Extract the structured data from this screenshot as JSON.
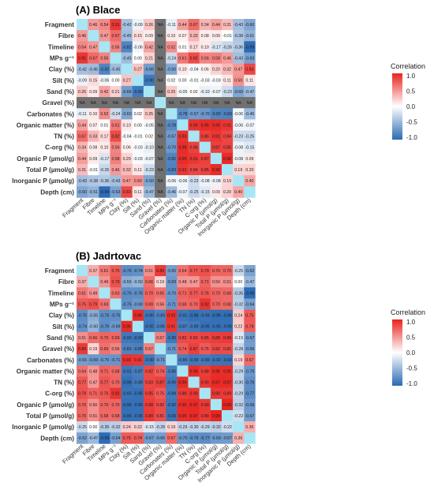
{
  "chart_data": [
    {
      "type": "heatmap",
      "title": "(A) Blace",
      "rows": [
        "Fragment",
        "Fibre",
        "Timeline",
        "MPs g⁻¹",
        "Clay (%)",
        "Silt (%)",
        "Sand (%)",
        "Gravel (%)",
        "Carbonates (%)",
        "Organic matter (%)",
        "TN (%)",
        "C-org (%)",
        "Organic P (µmol/g)",
        "Total P (µmol/g)",
        "Inorganic P (µmol/g)",
        "Depth (cm)"
      ],
      "columns": [
        "Fragment",
        "Fibre",
        "Timeline",
        "MPs g⁻¹",
        "Clay (%)",
        "Silt (%)",
        "Sand (%)",
        "Gravel (%)",
        "Carbonates (%)",
        "Organic matter (%)",
        "TN (%)",
        "C-org (%)",
        "Organic P (µmol/g)",
        "Total P (µmol/g)",
        "Inorganic P (µmol/g)",
        "Depth (cm)"
      ],
      "na_label": "NA",
      "values": [
        [
          null,
          0.46,
          0.54,
          0.91,
          -0.42,
          -0.09,
          0.26,
          "NA",
          -0.11,
          0.44,
          0.67,
          0.34,
          0.44,
          0.31,
          -0.43,
          -0.6
        ],
        [
          0.46,
          null,
          0.47,
          0.67,
          -0.45,
          0.15,
          0.09,
          "NA",
          0.1,
          0.07,
          0.33,
          0.08,
          0.09,
          -0.01,
          -0.38,
          -0.51
        ],
        [
          0.54,
          0.47,
          null,
          0.56,
          -0.82,
          -0.06,
          0.42,
          "NA",
          0.52,
          0.01,
          0.17,
          0.1,
          -0.17,
          -0.26,
          -0.36,
          -0.99
        ],
        [
          0.91,
          0.67,
          0.56,
          null,
          -0.45,
          0.0,
          0.21,
          "NA",
          -0.24,
          0.61,
          0.82,
          0.56,
          0.58,
          0.46,
          -0.43,
          -0.63
        ],
        [
          -0.42,
          -0.45,
          -0.82,
          -0.45,
          null,
          0.27,
          -0.66,
          "NA",
          -0.6,
          0.1,
          -0.04,
          0.06,
          0.2,
          0.32,
          0.47,
          0.83
        ],
        [
          -0.09,
          0.15,
          -0.06,
          0.0,
          0.27,
          null,
          -0.9,
          "NA",
          0.02,
          0.0,
          -0.01,
          -0.03,
          -0.03,
          0.11,
          0.5,
          0.11
        ],
        [
          0.26,
          0.09,
          0.42,
          0.21,
          -0.66,
          -0.9,
          null,
          "NA",
          0.25,
          -0.05,
          0.02,
          -0.1,
          -0.07,
          -0.23,
          -0.6,
          -0.47
        ],
        [
          "NA",
          "NA",
          "NA",
          "NA",
          "NA",
          "NA",
          "NA",
          null,
          "NA",
          "NA",
          "NA",
          "NA",
          "NA",
          "NA",
          "NA",
          "NA"
        ],
        [
          -0.11,
          0.1,
          0.52,
          -0.24,
          -0.6,
          0.02,
          0.25,
          "NA",
          null,
          -0.78,
          -0.67,
          -0.7,
          -0.82,
          -0.83,
          -0.06,
          -0.46
        ],
        [
          0.44,
          0.07,
          0.01,
          0.61,
          0.1,
          0.0,
          -0.05,
          "NA",
          -0.78,
          null,
          0.93,
          0.96,
          0.95,
          0.91,
          -0.06,
          -0.07
        ],
        [
          0.67,
          0.33,
          0.17,
          0.82,
          -0.04,
          -0.01,
          0.02,
          "NA",
          -0.67,
          0.93,
          null,
          0.86,
          0.91,
          0.84,
          -0.23,
          -0.25
        ],
        [
          0.34,
          0.08,
          0.1,
          0.56,
          0.06,
          -0.03,
          -0.1,
          "NA",
          -0.7,
          0.96,
          0.86,
          null,
          0.87,
          0.85,
          -0.08,
          -0.15
        ],
        [
          0.44,
          0.09,
          -0.17,
          0.58,
          0.2,
          -0.03,
          -0.07,
          "NA",
          -0.82,
          0.95,
          0.91,
          0.87,
          null,
          0.96,
          -0.08,
          0.09
        ],
        [
          0.31,
          -0.01,
          -0.26,
          0.46,
          0.32,
          0.11,
          -0.23,
          "NA",
          -0.83,
          0.91,
          0.84,
          0.85,
          0.96,
          null,
          0.19,
          0.2
        ],
        [
          -0.43,
          -0.38,
          -0.36,
          -0.43,
          0.47,
          0.5,
          -0.6,
          "NA",
          -0.06,
          -0.06,
          -0.23,
          -0.08,
          -0.08,
          0.19,
          null,
          0.4
        ],
        [
          -0.6,
          -0.51,
          -0.99,
          -0.63,
          0.83,
          0.11,
          -0.47,
          "NA",
          -0.46,
          -0.07,
          -0.25,
          -0.15,
          0.09,
          0.2,
          0.4,
          null
        ]
      ]
    },
    {
      "type": "heatmap",
      "title": "(B) Jadrtovac",
      "rows": [
        "Fragment",
        "Fibre",
        "Timeline",
        "MPs g⁻¹",
        "Clay (%)",
        "Silt (%)",
        "Sand (%)",
        "Gravel (%)",
        "Carbonates (%)",
        "Organic matter (%)",
        "TN (%)",
        "C-org (%)",
        "Organic P (µmol/g)",
        "Total P (µmol/g)",
        "Inorganic P (µmol/g)",
        "Depth (cm)"
      ],
      "columns": [
        "Fragment",
        "Fibre",
        "Timeline",
        "MPs g⁻¹",
        "Clay (%)",
        "Silt (%)",
        "Sand (%)",
        "Gravel (%)",
        "Carbonates (%)",
        "Organic matter (%)",
        "TN (%)",
        "C-org (%)",
        "Organic P (µmol/g)",
        "Total P (µmol/g)",
        "Inorganic P (µmol/g)",
        "Depth (cm)"
      ],
      "values": [
        [
          null,
          0.37,
          0.61,
          0.75,
          -0.76,
          -0.74,
          0.51,
          0.89,
          -0.65,
          0.64,
          0.77,
          0.79,
          0.7,
          0.7,
          -0.25,
          -0.62
        ],
        [
          0.37,
          null,
          0.49,
          0.79,
          -0.55,
          -0.5,
          0.66,
          0.19,
          -0.69,
          0.48,
          0.47,
          0.71,
          0.5,
          0.51,
          0.0,
          -0.47
        ],
        [
          0.61,
          0.49,
          null,
          0.63,
          -0.76,
          -0.76,
          0.7,
          0.65,
          -0.7,
          0.71,
          0.77,
          0.76,
          0.7,
          0.68,
          -0.35,
          -0.99
        ],
        [
          0.75,
          0.79,
          0.63,
          null,
          -0.75,
          -0.69,
          0.69,
          0.56,
          -0.71,
          0.68,
          0.7,
          0.92,
          0.7,
          0.68,
          -0.32,
          -0.64
        ],
        [
          -0.76,
          -0.55,
          -0.76,
          -0.75,
          null,
          0.96,
          -0.9,
          -0.83,
          0.93,
          -0.91,
          -0.96,
          -0.93,
          -0.96,
          -0.96,
          0.24,
          0.75
        ],
        [
          -0.74,
          -0.5,
          -0.76,
          -0.69,
          0.96,
          null,
          -0.92,
          -0.85,
          0.91,
          -0.87,
          -0.89,
          -0.95,
          -0.95,
          -0.95,
          0.22,
          0.74
        ],
        [
          0.51,
          0.66,
          0.7,
          0.69,
          -0.9,
          -0.92,
          null,
          0.57,
          -0.9,
          0.82,
          0.83,
          0.85,
          0.88,
          0.89,
          -0.15,
          -0.67
        ],
        [
          0.89,
          0.19,
          0.65,
          0.56,
          -0.83,
          -0.85,
          0.57,
          null,
          -0.71,
          0.74,
          0.87,
          0.75,
          0.82,
          0.81,
          -0.28,
          -0.66
        ],
        [
          -0.65,
          -0.69,
          -0.7,
          -0.71,
          0.93,
          0.91,
          -0.9,
          -0.71,
          null,
          -0.85,
          -0.9,
          -0.89,
          -0.92,
          -0.93,
          0.19,
          0.67
        ],
        [
          0.64,
          0.48,
          0.71,
          0.68,
          -0.91,
          -0.87,
          0.82,
          0.74,
          -0.85,
          null,
          0.96,
          0.88,
          0.95,
          0.95,
          -0.29,
          -0.7
        ],
        [
          0.77,
          0.47,
          0.77,
          0.7,
          -0.96,
          -0.89,
          0.83,
          0.87,
          -0.9,
          0.96,
          null,
          0.9,
          0.97,
          0.97,
          -0.3,
          -0.76
        ],
        [
          0.79,
          0.71,
          0.76,
          0.92,
          -0.93,
          -0.95,
          0.85,
          0.75,
          -0.89,
          0.88,
          0.9,
          null,
          0.9,
          0.89,
          -0.29,
          -0.77
        ],
        [
          0.7,
          0.5,
          0.7,
          0.7,
          -0.96,
          -0.95,
          0.88,
          0.82,
          -0.92,
          0.95,
          0.97,
          0.9,
          null,
          0.99,
          -0.32,
          -0.69
        ],
        [
          0.7,
          0.51,
          0.68,
          0.68,
          -0.96,
          -0.95,
          0.89,
          0.81,
          -0.93,
          0.95,
          0.97,
          0.89,
          0.99,
          null,
          -0.22,
          -0.67
        ],
        [
          -0.25,
          0.0,
          -0.35,
          -0.32,
          0.24,
          0.22,
          -0.15,
          -0.28,
          0.19,
          -0.29,
          -0.3,
          -0.29,
          -0.32,
          -0.22,
          null,
          0.36
        ],
        [
          -0.62,
          -0.47,
          -0.99,
          -0.64,
          0.75,
          0.74,
          -0.67,
          -0.66,
          0.67,
          -0.7,
          -0.76,
          -0.77,
          -0.69,
          -0.67,
          0.36,
          null
        ]
      ]
    }
  ],
  "legend": {
    "title": "Correlation",
    "ticks": [
      "1.0",
      "0.5",
      "0.0",
      "-0.5",
      "-1.0"
    ],
    "colors": {
      "high": "#e8231f",
      "mid": "#ffffff",
      "low": "#2b6ab3"
    }
  },
  "na_color": "#707070",
  "diag_color": "#a8e6f5"
}
